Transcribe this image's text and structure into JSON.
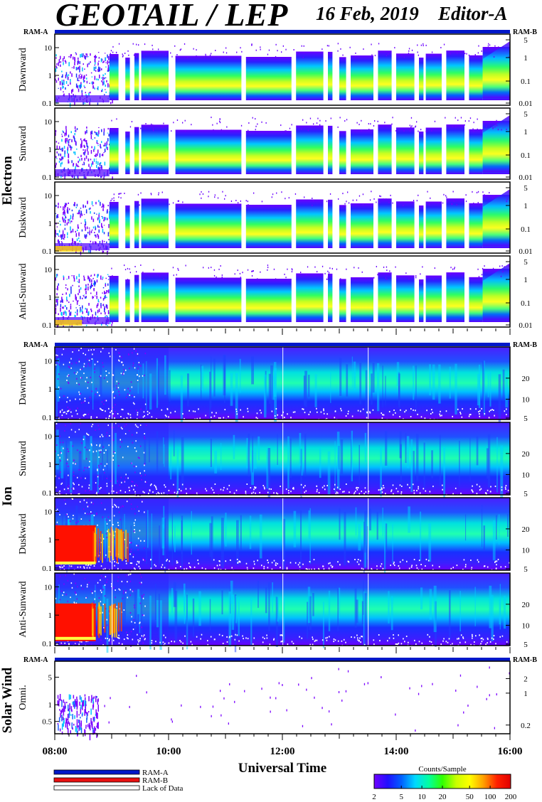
{
  "header": {
    "title": "GEOTAIL / LEP",
    "date": "16 Feb, 2019",
    "editor": "Editor-A"
  },
  "colors": {
    "ram_a": "#0018c8",
    "ram_b": "#e81010",
    "lack_of_data": "#ffffff",
    "colorbar": [
      "#7000ff",
      "#2010ff",
      "#0060ff",
      "#00d8ff",
      "#00ffa0",
      "#30ff00",
      "#c8ff00",
      "#ffff00",
      "#ffa000",
      "#ff2000",
      "#e00000"
    ]
  },
  "ram_labels": {
    "left": "RAM-A",
    "right": "RAM-B"
  },
  "groups": [
    {
      "name": "Electron",
      "panels": [
        {
          "label": "Dawnward",
          "left_ticks": [
            "0.1",
            "1",
            "10"
          ],
          "right_ticks": [
            "0.01",
            "0.1",
            "1",
            "5"
          ]
        },
        {
          "label": "Sunward",
          "left_ticks": [
            "0.1",
            "1",
            "10"
          ],
          "right_ticks": [
            "0.01",
            "0.1",
            "1",
            "5"
          ]
        },
        {
          "label": "Duskward",
          "left_ticks": [
            "0.1",
            "1",
            "10"
          ],
          "right_ticks": [
            "0.01",
            "0.1",
            "1",
            "5"
          ]
        },
        {
          "label": "Anti-Sunward",
          "left_ticks": [
            "0.1",
            "1",
            "10"
          ],
          "right_ticks": [
            "0.01",
            "0.1",
            "1",
            "5"
          ]
        }
      ]
    },
    {
      "name": "Ion",
      "panels": [
        {
          "label": "Dawnward",
          "left_ticks": [
            "0.1",
            "1",
            "10"
          ],
          "right_ticks": [
            "5",
            "10",
            "20"
          ]
        },
        {
          "label": "Sunward",
          "left_ticks": [
            "0.1",
            "1",
            "10"
          ],
          "right_ticks": [
            "5",
            "10",
            "20"
          ]
        },
        {
          "label": "Duskward",
          "left_ticks": [
            "0.1",
            "1",
            "10"
          ],
          "right_ticks": [
            "5",
            "10",
            "20"
          ]
        },
        {
          "label": "Anti-Sunward",
          "left_ticks": [
            "0.1",
            "1",
            "10"
          ],
          "right_ticks": [
            "5",
            "10",
            "20"
          ]
        }
      ]
    },
    {
      "name": "Solar Wind",
      "panels": [
        {
          "label": "Omni.",
          "left_ticks": [
            "0.5",
            "1",
            "5"
          ],
          "right_ticks": [
            "0.2",
            "1",
            "2"
          ]
        }
      ]
    }
  ],
  "x_axis": {
    "ticks": [
      "08:00",
      "10:00",
      "12:00",
      "14:00",
      "16:00"
    ],
    "label": "Universal Time"
  },
  "legend": [
    {
      "label": "RAM-A",
      "color": "#0018c8"
    },
    {
      "label": "RAM-B",
      "color": "#e81010"
    },
    {
      "label": "Lack of Data",
      "color": "#ffffff"
    }
  ],
  "colorbar": {
    "title": "Counts/Sample",
    "ticks": [
      "2",
      "5",
      "10",
      "20",
      "50",
      "100",
      "200"
    ]
  },
  "chart_data": {
    "type": "heatmap",
    "title": "GEOTAIL / LEP",
    "xlabel": "Universal Time",
    "x_range": [
      "08:00",
      "16:00"
    ],
    "x_ticks": [
      "08:00",
      "10:00",
      "12:00",
      "14:00",
      "16:00"
    ],
    "z_label": "Counts/Sample",
    "z_range": [
      2,
      200
    ],
    "z_scale": "log",
    "y_scale": "log",
    "panels": [
      "Electron Dawnward",
      "Electron Sunward",
      "Electron Duskward",
      "Electron Anti-Sunward",
      "Ion Dawnward",
      "Ion Sunward",
      "Ion Duskward",
      "Ion Anti-Sunward",
      "Solar Wind Omni."
    ]
  }
}
